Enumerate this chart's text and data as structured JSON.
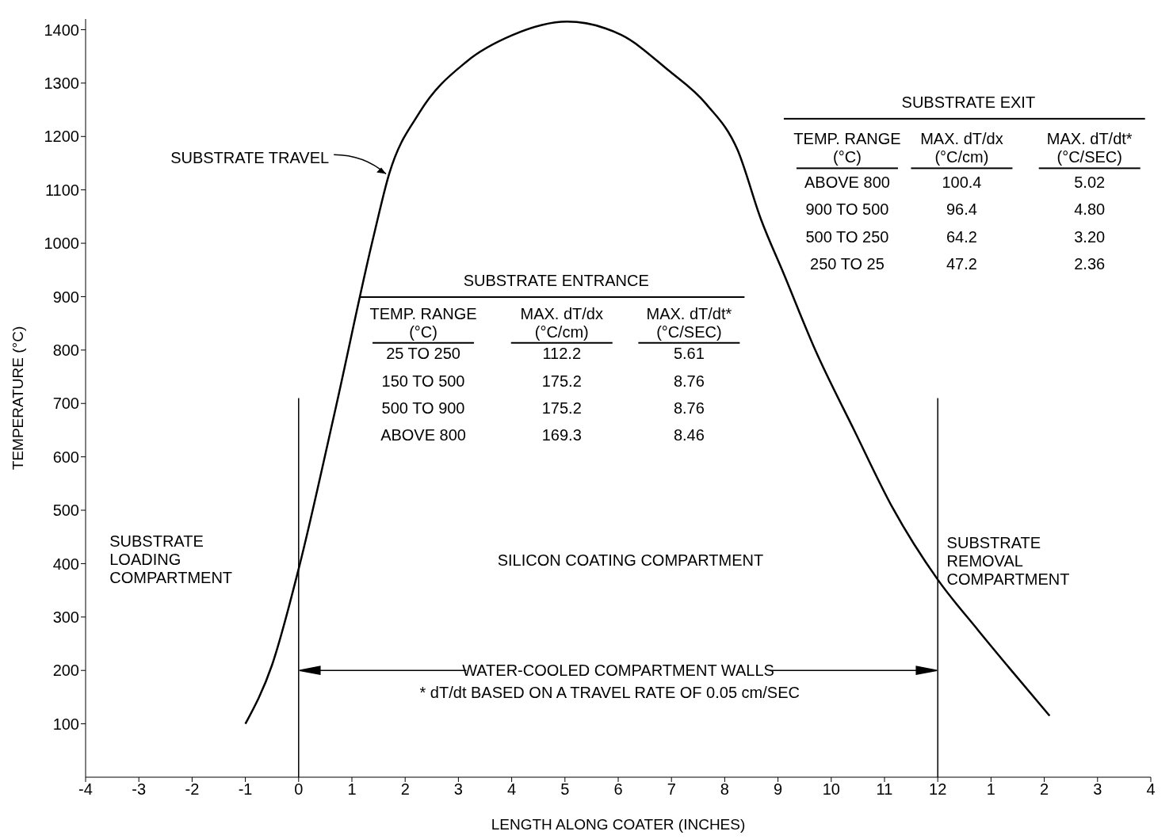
{
  "chart_data": {
    "type": "line",
    "xlabel": "LENGTH ALONG COATER (INCHES)",
    "ylabel": "TEMPERATURE (°C)",
    "x": [
      -1,
      -0.5,
      0,
      0.67,
      1.4,
      1.7,
      2.27,
      3.15,
      4.02,
      5.04,
      6.06,
      6.93,
      7.66,
      8.24,
      8.68,
      9.12,
      9.7,
      10.43,
      11.15,
      12,
      12.76,
      13.34,
      14.1
    ],
    "series": [
      {
        "color": "#000000",
        "values": [
          100,
          210,
          390,
          680,
          1010,
          1130,
          1245,
          1340,
          1390,
          1415,
          1390,
          1325,
          1260,
          1175,
          1045,
          940,
          800,
          650,
          505,
          370,
          275,
          205,
          115
        ]
      }
    ],
    "xlim": [
      -4,
      16
    ],
    "xticks": [
      -4,
      -3,
      -2,
      -1,
      0,
      1,
      2,
      3,
      4,
      5,
      6,
      7,
      8,
      9,
      10,
      11,
      12
    ],
    "x2lim": [
      -16,
      4
    ],
    "x2ticks": [
      1,
      2,
      3,
      4
    ],
    "ylim": [
      0,
      1420
    ],
    "yticks": [
      100,
      200,
      300,
      400,
      500,
      600,
      700,
      800,
      900,
      1000,
      1100,
      1200,
      1300,
      1400
    ],
    "marker": "none",
    "line_style": "solid",
    "ref_lines": [
      {
        "axis": "x",
        "value": 0,
        "color": "#000000"
      },
      {
        "axis": "x",
        "value": 12,
        "color": "#000000"
      }
    ],
    "annotations": [
      {
        "text": "SUBSTRATE TRAVEL",
        "x": 1.7,
        "y": 1130
      },
      "SUBSTRATE EXIT",
      "TEMP. RANGE\n(°C)",
      "MAX. dT/dx\n(°C/cm)",
      "MAX. dT/dt*\n(°C/SEC)",
      "ABOVE 800",
      "100.4",
      "5.02",
      "900 TO 500",
      "96.4",
      "4.80",
      "500 TO 250",
      "64.2",
      "3.20",
      "250 TO 25",
      "47.2",
      "2.36",
      "SUBSTRATE ENTRANCE",
      "TEMP. RANGE\n(°C)",
      "MAX. dT/dx\n(°C/cm)",
      "MAX. dT/dt*\n(°C/SEC)",
      "25 TO 250",
      "112.2",
      "5.61",
      "150 TO 500",
      "175.2",
      "8.76",
      "500 TO 900",
      "175.2",
      "8.76",
      "ABOVE 800",
      "169.3",
      "8.46",
      "SUBSTRATE\nLOADING\nCOMPARTMENT",
      "SILICON COATING COMPARTMENT",
      "SUBSTRATE\nREMOVAL\nCOMPARTMENT",
      {
        "text": "WATER-COOLED COMPARTMENT WALLS",
        "x": 0,
        "y": 200
      },
      "* dT/dt BASED ON A TRAVEL RATE OF 0.05 cm/SEC"
    ]
  }
}
